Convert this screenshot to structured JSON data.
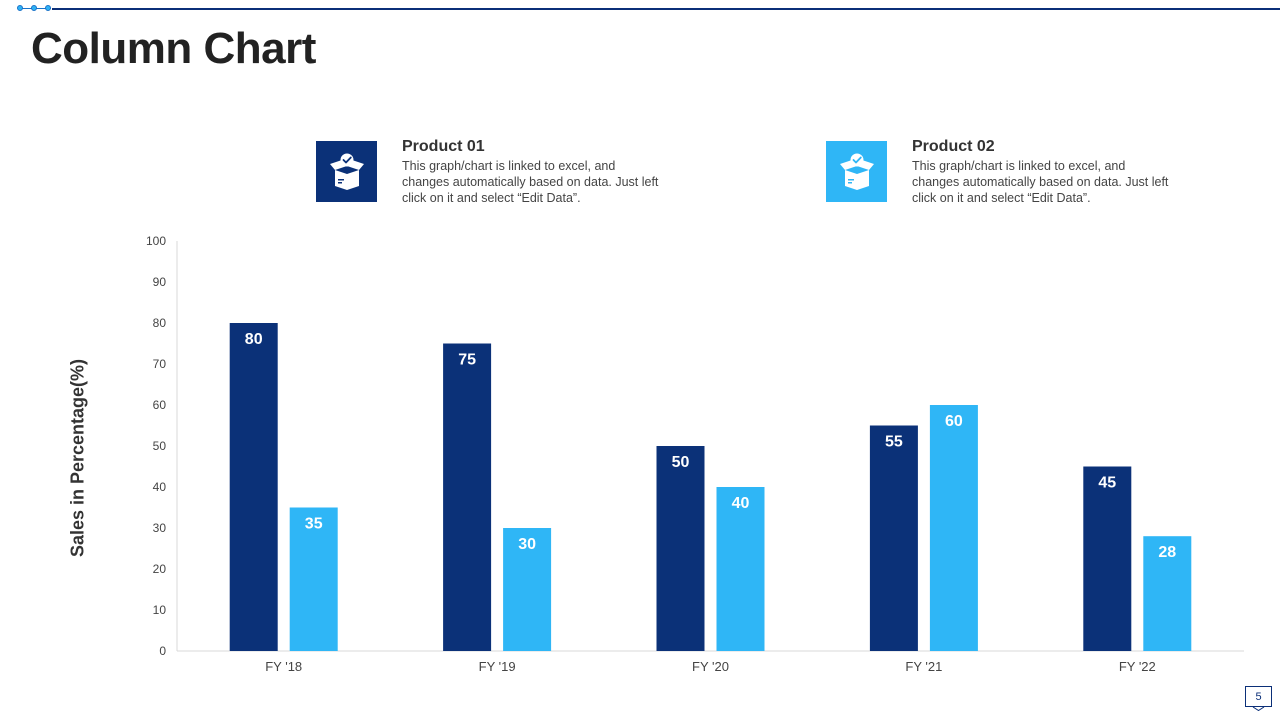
{
  "title": "Column Chart",
  "page_number": "5",
  "colors": {
    "product1": "#0b3178",
    "product2": "#2fb6f6",
    "accent": "#0b2f78"
  },
  "legend": [
    {
      "title": "Product 01",
      "description": "This graph/chart is linked to excel, and changes automatically based on data. Just left click on it and select “Edit Data”.",
      "icon": "open-box-check-icon"
    },
    {
      "title": "Product 02",
      "description": "This graph/chart is linked to excel, and changes automatically based on data. Just left click on it and select “Edit Data”.",
      "icon": "open-box-check-icon"
    }
  ],
  "chart_data": {
    "type": "bar",
    "title": "",
    "xlabel": "",
    "ylabel": "Sales in Percentage(%)",
    "ylim": [
      0,
      100
    ],
    "yticks": [
      0,
      10,
      20,
      30,
      40,
      50,
      60,
      70,
      80,
      90,
      100
    ],
    "grid": false,
    "categories": [
      "FY '18",
      "FY '19",
      "FY '20",
      "FY '21",
      "FY '22"
    ],
    "series": [
      {
        "name": "Product 01",
        "values": [
          80,
          75,
          50,
          55,
          45
        ]
      },
      {
        "name": "Product 02",
        "values": [
          35,
          30,
          40,
          60,
          28
        ]
      }
    ]
  }
}
